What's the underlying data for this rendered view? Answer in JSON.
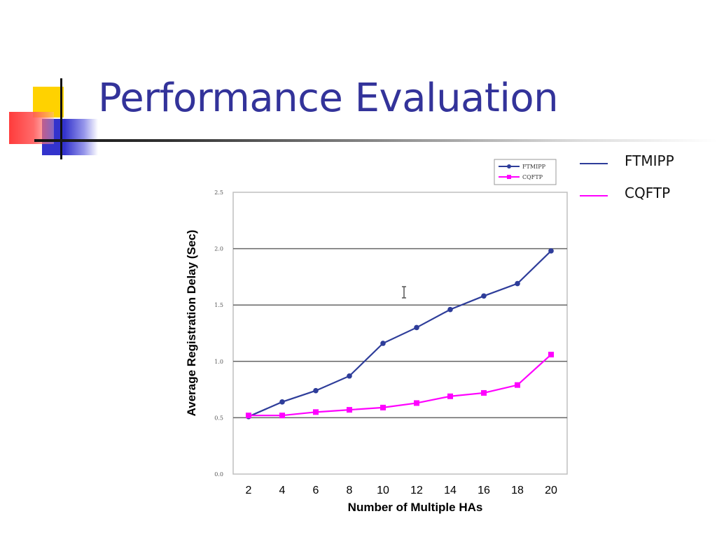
{
  "slide": {
    "title": "Performance Evaluation"
  },
  "legend_right": [
    {
      "label": "FTMIPP",
      "color": "#2e3d9a"
    },
    {
      "label": "CQFTP",
      "color": "#ff00ff"
    }
  ],
  "colors": {
    "title": "#33339a",
    "deco_yellow": "#ffd200",
    "deco_blue": "#3333cc",
    "deco_red": "#ff4444",
    "gridline": "#666666"
  },
  "chart_data": {
    "type": "line",
    "xlabel": "Number of Multiple HAs",
    "ylabel": "Average Registration Delay (Sec)",
    "x": [
      2,
      4,
      6,
      8,
      10,
      12,
      14,
      16,
      18,
      20
    ],
    "x_tick_labels": [
      "2",
      "4",
      "6",
      "8",
      "10",
      "12",
      "14",
      "16",
      "18",
      "20"
    ],
    "y_tick_labels": [
      "0.0",
      "0.5",
      "1.0",
      "1.5",
      "2.0",
      "2.5"
    ],
    "y_ticks": [
      0.0,
      0.5,
      1.0,
      1.5,
      2.0,
      2.5
    ],
    "ylim": [
      0.0,
      2.5
    ],
    "grid": true,
    "legend_placement": "top-right",
    "series": [
      {
        "name": "FTMIPP",
        "color": "#2e3d9a",
        "marker": "circle",
        "values": [
          0.51,
          0.64,
          0.74,
          0.87,
          1.16,
          1.3,
          1.46,
          1.58,
          1.69,
          1.98
        ]
      },
      {
        "name": "CQFTP",
        "color": "#ff00ff",
        "marker": "square",
        "values": [
          0.52,
          0.52,
          0.55,
          0.57,
          0.59,
          0.63,
          0.69,
          0.72,
          0.79,
          1.06
        ]
      }
    ]
  }
}
